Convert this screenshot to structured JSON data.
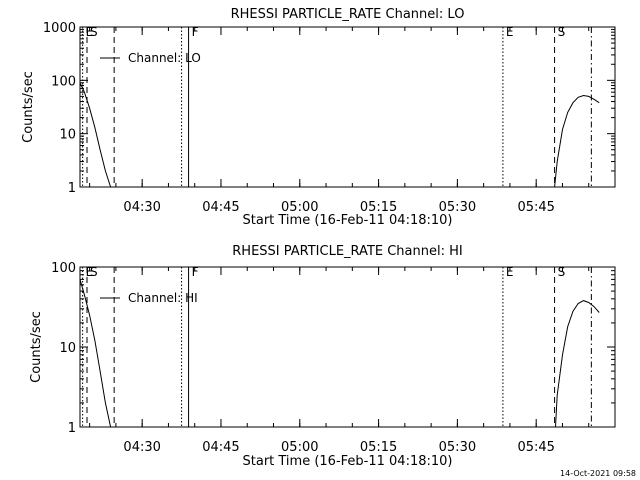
{
  "footer": {
    "timestamp": "14-Oct-2021 09:58"
  },
  "chart_data": [
    {
      "type": "line",
      "title": "RHESSI PARTICLE_RATE Channel: LO",
      "xlabel": "Start Time (16-Feb-11 04:18:10)",
      "ylabel": "Counts/sec",
      "y_scale": "log",
      "ylim": [
        1,
        1000
      ],
      "xlim": [
        "04:18:10",
        "06:00:00"
      ],
      "x_ticks": [
        "04:30",
        "04:45",
        "05:00",
        "05:15",
        "05:30",
        "05:45"
      ],
      "y_ticks": [
        "1",
        "10",
        "100",
        "1000"
      ],
      "legend": {
        "label": "Channel: LO",
        "placement": "top-left"
      },
      "series": [
        {
          "name": "Channel: LO",
          "segments": [
            [
              [
                "04:18:10",
                90
              ],
              [
                "04:19:00",
                60
              ],
              [
                "04:20:00",
                30
              ],
              [
                "04:21:00",
                13
              ],
              [
                "04:22:00",
                5
              ],
              [
                "04:23:00",
                2
              ],
              [
                "04:24:00",
                1
              ]
            ],
            [
              [
                "05:48:30",
                1
              ],
              [
                "05:49:00",
                3
              ],
              [
                "05:50:00",
                12
              ],
              [
                "05:51:00",
                25
              ],
              [
                "05:52:00",
                38
              ],
              [
                "05:53:00",
                48
              ],
              [
                "05:54:00",
                52
              ],
              [
                "05:55:00",
                50
              ],
              [
                "05:56:00",
                44
              ],
              [
                "05:57:00",
                38
              ]
            ]
          ]
        }
      ],
      "markers": [
        {
          "label": "E",
          "time": "04:18:40",
          "style": "dotted"
        },
        {
          "label": "S",
          "time": "04:19:30",
          "style": "dashed"
        },
        {
          "label": "",
          "time": "04:24:40",
          "style": "dashed"
        },
        {
          "label": "",
          "time": "04:37:30",
          "style": "dotted"
        },
        {
          "label": "F",
          "time": "04:38:50",
          "style": "solid"
        },
        {
          "label": "E",
          "time": "05:38:40",
          "style": "dotted"
        },
        {
          "label": "S",
          "time": "05:48:30",
          "style": "dashed"
        },
        {
          "label": "",
          "time": "05:55:30",
          "style": "dashdot"
        }
      ]
    },
    {
      "type": "line",
      "title": "RHESSI PARTICLE_RATE Channel: HI",
      "xlabel": "Start Time (16-Feb-11 04:18:10)",
      "ylabel": "Counts/sec",
      "y_scale": "log",
      "ylim": [
        1,
        100
      ],
      "xlim": [
        "04:18:10",
        "06:00:00"
      ],
      "x_ticks": [
        "04:30",
        "04:45",
        "05:00",
        "05:15",
        "05:30",
        "05:45"
      ],
      "y_ticks": [
        "1",
        "10",
        "100"
      ],
      "legend": {
        "label": "Channel: HI",
        "placement": "top-left"
      },
      "series": [
        {
          "name": "Channel: HI",
          "segments": [
            [
              [
                "04:18:10",
                70
              ],
              [
                "04:19:00",
                45
              ],
              [
                "04:20:00",
                25
              ],
              [
                "04:21:00",
                12
              ],
              [
                "04:22:00",
                5
              ],
              [
                "04:23:00",
                2
              ],
              [
                "04:24:00",
                1
              ]
            ],
            [
              [
                "05:48:40",
                1
              ],
              [
                "05:49:00",
                2.5
              ],
              [
                "05:50:00",
                8
              ],
              [
                "05:51:00",
                18
              ],
              [
                "05:52:00",
                28
              ],
              [
                "05:53:00",
                35
              ],
              [
                "05:54:00",
                38
              ],
              [
                "05:55:00",
                36
              ],
              [
                "05:56:00",
                32
              ],
              [
                "05:57:00",
                27
              ]
            ]
          ]
        }
      ],
      "markers": [
        {
          "label": "E",
          "time": "04:18:40",
          "style": "dotted"
        },
        {
          "label": "S",
          "time": "04:19:30",
          "style": "dashed"
        },
        {
          "label": "",
          "time": "04:24:40",
          "style": "dashed"
        },
        {
          "label": "",
          "time": "04:37:30",
          "style": "dotted"
        },
        {
          "label": "F",
          "time": "04:38:50",
          "style": "solid"
        },
        {
          "label": "E",
          "time": "05:38:40",
          "style": "dotted"
        },
        {
          "label": "S",
          "time": "05:48:30",
          "style": "dashed"
        },
        {
          "label": "",
          "time": "05:55:30",
          "style": "dashdot"
        }
      ]
    }
  ]
}
